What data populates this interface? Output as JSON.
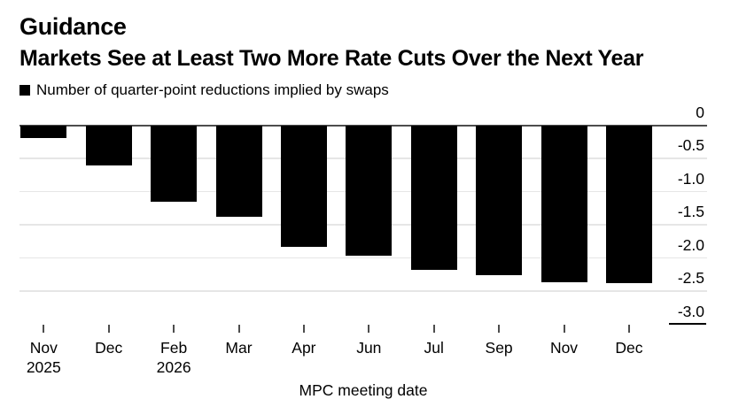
{
  "header": {
    "eyebrow": "Guidance",
    "title": "Markets See at Least Two More Rate Cuts Over the Next Year",
    "legend": "Number of quarter-point reductions implied by swaps"
  },
  "colors": {
    "bar": "#000000",
    "zero_line": "#4d4d4d",
    "gridline": "#e6e6e6",
    "axis_stub": "#000000",
    "text": "#000000",
    "background": "#ffffff"
  },
  "chart_data": {
    "type": "bar",
    "title": "Guidance",
    "subtitle": "Markets See at Least Two More Rate Cuts Over the Next Year",
    "legend": [
      "Number of quarter-point reductions implied by swaps"
    ],
    "legend_position": "top-left",
    "categories": [
      "Nov",
      "Dec",
      "Feb",
      "Mar",
      "Apr",
      "Jun",
      "Jul",
      "Sep",
      "Nov",
      "Dec"
    ],
    "year_labels": [
      {
        "index": 0,
        "label": "2025"
      },
      {
        "index": 2,
        "label": "2026"
      }
    ],
    "values": [
      -0.19,
      -0.61,
      -1.15,
      -1.38,
      -1.83,
      -1.96,
      -2.18,
      -2.26,
      -2.37,
      -2.38
    ],
    "xlabel": "MPC meeting date",
    "ylabel": "",
    "ylim": [
      -3.0,
      0
    ],
    "yticks": [
      0,
      -0.5,
      -1.0,
      -1.5,
      -2.0,
      -2.5,
      -3.0
    ],
    "ytick_labels": [
      "0",
      "-0.5",
      "-1.0",
      "-1.5",
      "-2.0",
      "-2.5",
      "-3.0"
    ],
    "grid": "horizontal",
    "bar_color": "#000000"
  }
}
